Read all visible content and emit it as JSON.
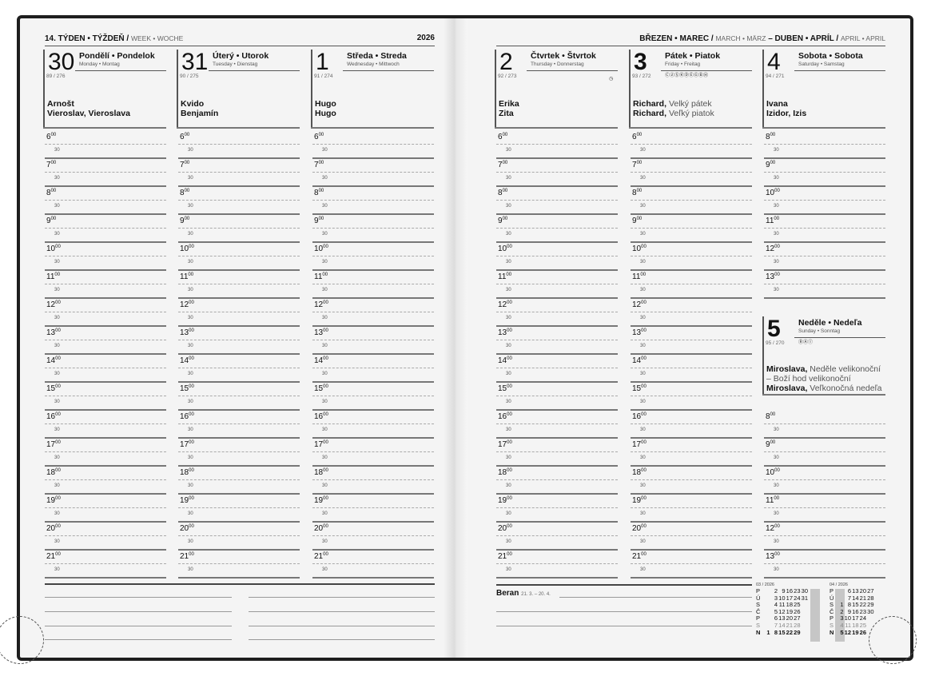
{
  "left_header": {
    "week": "14. TÝDEN • TÝŽDEŇ /",
    "week_alt": "WEEK • WOCHE",
    "year": "2026"
  },
  "right_header": {
    "m1": "BŘEZEN • MAREC /",
    "m1_alt": "MARCH • MÄRZ",
    "dash": "–",
    "m2": "DUBEN • APRÍL /",
    "m2_alt": "APRIL • APRIL"
  },
  "days": [
    {
      "num": "30",
      "name": "Pondělí • Pondelok",
      "sub": "Monday • Montag",
      "count": "89 / 276",
      "names": [
        [
          "Arnošt",
          ""
        ],
        [
          "Vieroslav, Vieroslava",
          ""
        ]
      ]
    },
    {
      "num": "31",
      "name": "Úterý • Utorok",
      "sub": "Tuesday • Dienstag",
      "count": "90 / 275",
      "names": [
        [
          "Kvido",
          ""
        ],
        [
          "Benjamín",
          ""
        ]
      ]
    },
    {
      "num": "1",
      "name": "Středa • Streda",
      "sub": "Wednesday • Mittwoch",
      "count": "91 / 274",
      "names": [
        [
          "Hugo",
          ""
        ],
        [
          "Hugo",
          ""
        ]
      ]
    },
    {
      "num": "2",
      "name": "Čtvrtek • Štvrtok",
      "sub": "Thursday • Donnerstag",
      "count": "92 / 273",
      "icons": "◷",
      "names": [
        [
          "Erika",
          ""
        ],
        [
          "Zita",
          ""
        ]
      ]
    },
    {
      "num": "3",
      "name": "Pátek • Piatok",
      "sub": "Friday • Freitag",
      "count": "93 / 272",
      "icons": "ⒸⓏⓈⓀⒹⒺⒼⒷⒽ",
      "names": [
        [
          "Richard,",
          "Velký pátek"
        ],
        [
          "Richard,",
          "Veľký piatok"
        ]
      ]
    },
    {
      "num": "4",
      "name": "Sobota • Sobota",
      "sub": "Saturday • Samstag",
      "count": "94 / 271",
      "names": [
        [
          "Ivana",
          ""
        ],
        [
          "Izidor, Izis",
          ""
        ]
      ]
    },
    {
      "num": "5",
      "name": "Neděle • Nedeľa",
      "sub": "Sunday • Sonntag",
      "count": "95 / 270",
      "icons": "ⓇⒶⒾ",
      "names": [
        [
          "Miroslava,",
          "Neděle velikonoční"
        ],
        [
          "",
          "– Boží hod velikonoční"
        ],
        [
          "Miroslava,",
          "Veľkonočná nedeľa"
        ]
      ]
    }
  ],
  "hours_weekday": [
    "6",
    "7",
    "8",
    "9",
    "10",
    "11",
    "12",
    "13",
    "14",
    "15",
    "16",
    "17",
    "18",
    "19",
    "20",
    "21"
  ],
  "hours_weekend": [
    "8",
    "9",
    "10",
    "11",
    "12",
    "13"
  ],
  "minutes": {
    "full": "00",
    "half": "30"
  },
  "zodiac": {
    "name": "Beran",
    "dates": "21. 3. – 20. 4."
  },
  "mini_calendars": [
    {
      "title": "03 / 2026",
      "rows": [
        [
          "P",
          "",
          "2",
          "9",
          "16",
          "23",
          "30"
        ],
        [
          "Ú",
          "",
          "3",
          "10",
          "17",
          "24",
          "31"
        ],
        [
          "S",
          "",
          "4",
          "11",
          "18",
          "25",
          ""
        ],
        [
          "Č",
          "",
          "5",
          "12",
          "19",
          "26",
          ""
        ],
        [
          "P",
          "",
          "6",
          "13",
          "20",
          "27",
          ""
        ],
        [
          "S",
          "",
          "7",
          "14",
          "21",
          "28",
          ""
        ],
        [
          "N",
          "1",
          "8",
          "15",
          "22",
          "29",
          ""
        ]
      ]
    },
    {
      "title": "04 / 2026",
      "rows": [
        [
          "P",
          "",
          "6",
          "13",
          "20",
          "27"
        ],
        [
          "Ú",
          "",
          "7",
          "14",
          "21",
          "28"
        ],
        [
          "S",
          "1",
          "8",
          "15",
          "22",
          "29"
        ],
        [
          "Č",
          "2",
          "9",
          "16",
          "23",
          "30"
        ],
        [
          "P",
          "3",
          "10",
          "17",
          "24",
          ""
        ],
        [
          "S",
          "4",
          "11",
          "18",
          "25",
          ""
        ],
        [
          "N",
          "5",
          "12",
          "19",
          "26",
          ""
        ]
      ]
    }
  ]
}
